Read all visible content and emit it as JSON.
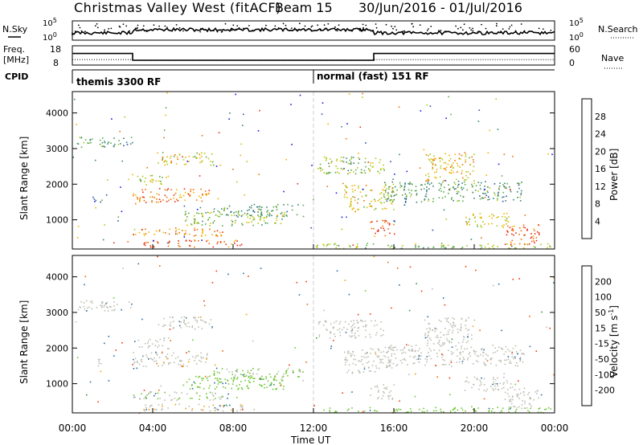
{
  "header": {
    "site": "Christmas Valley West (fitACF)",
    "beam": "Beam 15",
    "dates": "30/Jun/2016 - 01/Jul/2016"
  },
  "labels": {
    "nsky": "N.Sky",
    "nsearch": "N.Search",
    "freq": "Freq.",
    "freq_unit": "[MHz]",
    "nave": "Nave",
    "cpid": "CPID",
    "xlabel": "Time UT",
    "ylabel": "Slant Range [km]",
    "power_label": "Power [dB]",
    "velocity_label": "Velocity [m s",
    "velocity_exp": "-1",
    "velocity_close": "]"
  },
  "noise_panel": {
    "left_top": "10^5",
    "left_bottom": "10^0",
    "right_top": "10^5",
    "right_bottom": "10^0"
  },
  "freq_panel": {
    "left_ticks": [
      "18",
      "8"
    ],
    "right_ticks": [
      "60",
      "0"
    ],
    "freq_mhz": [
      {
        "t": 0,
        "v": 14
      },
      {
        "t": 3,
        "v": 10.5
      },
      {
        "t": 15,
        "v": 14
      }
    ],
    "nave": [
      {
        "t": 0,
        "v": 17
      },
      {
        "t": 3,
        "v": 14
      },
      {
        "t": 15,
        "v": 17
      }
    ],
    "freq_range": [
      8,
      18
    ],
    "nave_range": [
      0,
      60
    ]
  },
  "cpid": [
    {
      "label": "themis 3300 RF",
      "start": 0
    },
    {
      "label": "normal (fast) 151 RF",
      "start": 12
    }
  ],
  "time_axis": {
    "ticks": [
      "00:00",
      "04:00",
      "08:00",
      "12:00",
      "16:00",
      "20:00",
      "00:00"
    ],
    "range_hours": [
      0,
      24
    ]
  },
  "range_axis": {
    "ticks": [
      "1000",
      "2000",
      "3000",
      "4000"
    ],
    "range_km": [
      180,
      4600
    ]
  },
  "power_scale": {
    "ticks": [
      "4",
      "8",
      "12",
      "16",
      "20",
      "24",
      "28"
    ],
    "colors": [
      "#1414e6",
      "#2850a0",
      "#37827a",
      "#5aaa46",
      "#b4c814",
      "#f0b400",
      "#f06e00",
      "#e62814"
    ]
  },
  "velocity_scale": {
    "ticks": [
      "200",
      "100",
      "50",
      "15",
      "-15",
      "-50",
      "-100",
      "-200"
    ],
    "colors": [
      "#1e28c8",
      "#286aa0",
      "#3c963c",
      "#6ec832",
      "#bebeb4",
      "#f0a000",
      "#f06400",
      "#f03c00",
      "#e61414"
    ]
  },
  "chart_data": {
    "type": "heatmap",
    "title": "Christmas Valley West (fitACF) Beam 15 30/Jun/2016 - 01/Jul/2016",
    "xlabel": "Time UT",
    "ylabel": "Slant Range [km]",
    "xlim_hours": [
      0,
      24
    ],
    "ylim_km": [
      180,
      4600
    ],
    "regions": [
      {
        "t0": 0.2,
        "t1": 3.0,
        "r0": 3050,
        "r1": 3350,
        "power": 12,
        "velocity": 0
      },
      {
        "t0": 1.0,
        "t1": 1.6,
        "r0": 1500,
        "r1": 1700,
        "power": 8,
        "velocity": 0
      },
      {
        "t0": 3.0,
        "t1": 6.8,
        "r0": 1500,
        "r1": 1900,
        "power": 26,
        "velocity": -5
      },
      {
        "t0": 3.2,
        "t1": 4.8,
        "r0": 2000,
        "r1": 2300,
        "power": 18,
        "velocity": 0
      },
      {
        "t0": 4.2,
        "t1": 7.0,
        "r0": 2550,
        "r1": 2900,
        "power": 20,
        "velocity": 0
      },
      {
        "t0": 3.0,
        "t1": 7.5,
        "r0": 550,
        "r1": 800,
        "power": 24,
        "velocity": 10
      },
      {
        "t0": 3.5,
        "t1": 8.5,
        "r0": 250,
        "r1": 450,
        "power": 28,
        "velocity": -10
      },
      {
        "t0": 5.5,
        "t1": 10.5,
        "r0": 850,
        "r1": 1250,
        "power": 16,
        "velocity": 30
      },
      {
        "t0": 7.0,
        "t1": 11.5,
        "r0": 1100,
        "r1": 1450,
        "power": 12,
        "velocity": 20
      },
      {
        "t0": 12.2,
        "t1": 15.5,
        "r0": 2300,
        "r1": 2800,
        "power": 16,
        "velocity": 0
      },
      {
        "t0": 13.5,
        "t1": 16.0,
        "r0": 1300,
        "r1": 2000,
        "power": 20,
        "velocity": 0
      },
      {
        "t0": 14.8,
        "t1": 16.0,
        "r0": 550,
        "r1": 1000,
        "power": 28,
        "velocity": 0
      },
      {
        "t0": 15.5,
        "t1": 22.5,
        "r0": 1500,
        "r1": 2100,
        "power": 12,
        "velocity": 0
      },
      {
        "t0": 17.5,
        "t1": 20.0,
        "r0": 2100,
        "r1": 2900,
        "power": 22,
        "velocity": 0
      },
      {
        "t0": 19.5,
        "t1": 22.0,
        "r0": 800,
        "r1": 1200,
        "power": 20,
        "velocity": 0
      },
      {
        "t0": 21.5,
        "t1": 23.2,
        "r0": 300,
        "r1": 900,
        "power": 28,
        "velocity": 0
      },
      {
        "t0": 12.0,
        "t1": 23.8,
        "r0": 200,
        "r1": 350,
        "power": 16,
        "velocity": 30
      }
    ]
  }
}
